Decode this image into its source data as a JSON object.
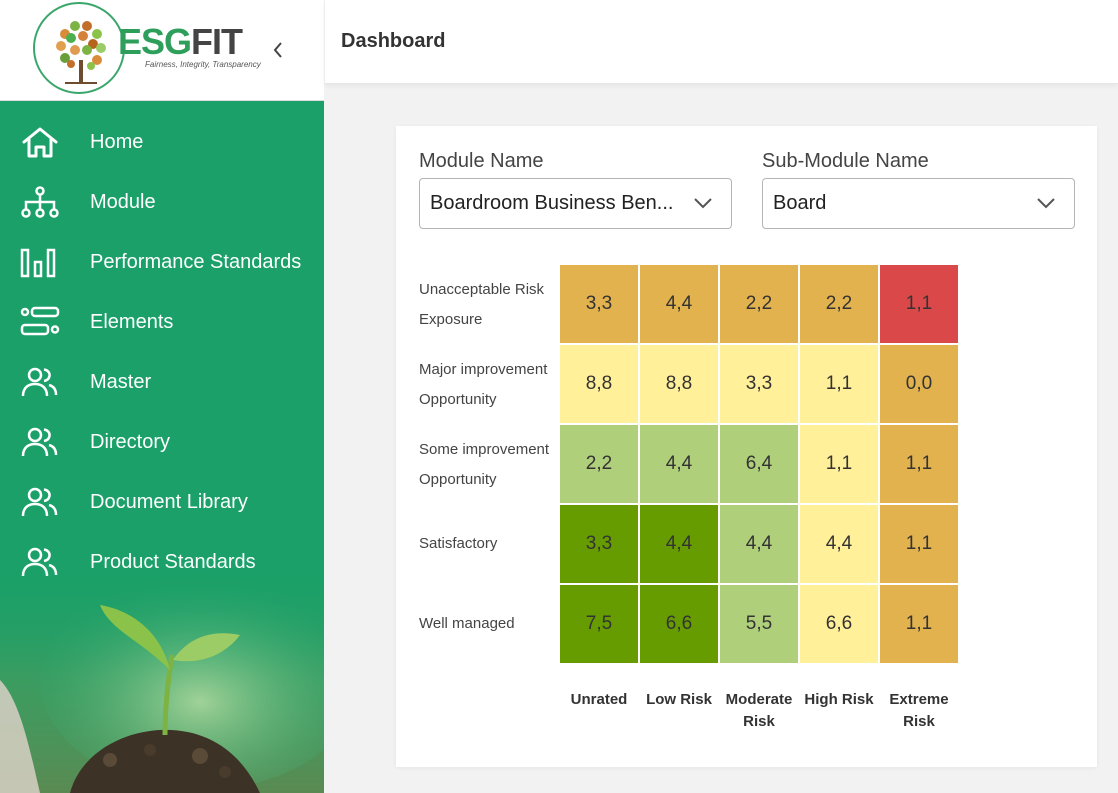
{
  "brand": {
    "name_part1": "ESG",
    "name_part2": "FIT",
    "tagline": "Fairness, Integrity, Transparency"
  },
  "header": {
    "title": "Dashboard"
  },
  "sidebar": {
    "items": [
      {
        "label": "Home",
        "icon": "home-icon"
      },
      {
        "label": "Module",
        "icon": "hierarchy-icon"
      },
      {
        "label": "Performance Standards",
        "icon": "bar-chart-icon"
      },
      {
        "label": "Elements",
        "icon": "elements-icon"
      },
      {
        "label": "Master",
        "icon": "users-icon"
      },
      {
        "label": "Directory",
        "icon": "users-icon"
      },
      {
        "label": "Document Library",
        "icon": "users-icon"
      },
      {
        "label": "Product Standards",
        "icon": "users-icon"
      }
    ]
  },
  "filters": {
    "module_label": "Module Name",
    "module_value": "Boardroom Business Ben...",
    "submodule_label": "Sub-Module Name",
    "submodule_value": "Board"
  },
  "colors": {
    "sidebar": "#1aa068",
    "dark_green": "#669c00",
    "light_green": "#b0cf7b",
    "yellow": "#fff099",
    "orange": "#e2b24f",
    "red": "#db484a"
  },
  "heatmap": {
    "rows": [
      {
        "label_line1": "Unacceptable Risk",
        "label_line2": "Exposure",
        "cells": [
          {
            "v": "3,3",
            "c": "orange"
          },
          {
            "v": "4,4",
            "c": "orange"
          },
          {
            "v": "2,2",
            "c": "orange"
          },
          {
            "v": "2,2",
            "c": "orange"
          },
          {
            "v": "1,1",
            "c": "red"
          }
        ]
      },
      {
        "label_line1": "Major improvement",
        "label_line2": "Opportunity",
        "cells": [
          {
            "v": "8,8",
            "c": "yellow"
          },
          {
            "v": "8,8",
            "c": "yellow"
          },
          {
            "v": "3,3",
            "c": "yellow"
          },
          {
            "v": "1,1",
            "c": "yellow"
          },
          {
            "v": "0,0",
            "c": "orange"
          }
        ]
      },
      {
        "label_line1": "Some improvement",
        "label_line2": "Opportunity",
        "cells": [
          {
            "v": "2,2",
            "c": "light_green"
          },
          {
            "v": "4,4",
            "c": "light_green"
          },
          {
            "v": "6,4",
            "c": "light_green"
          },
          {
            "v": "1,1",
            "c": "yellow"
          },
          {
            "v": "1,1",
            "c": "orange"
          }
        ]
      },
      {
        "label_line1": "Satisfactory",
        "label_line2": "",
        "cells": [
          {
            "v": "3,3",
            "c": "dark_green"
          },
          {
            "v": "4,4",
            "c": "dark_green"
          },
          {
            "v": "4,4",
            "c": "light_green"
          },
          {
            "v": "4,4",
            "c": "yellow"
          },
          {
            "v": "1,1",
            "c": "orange"
          }
        ]
      },
      {
        "label_line1": "Well managed",
        "label_line2": "",
        "cells": [
          {
            "v": "7,5",
            "c": "dark_green"
          },
          {
            "v": "6,6",
            "c": "dark_green"
          },
          {
            "v": "5,5",
            "c": "light_green"
          },
          {
            "v": "6,6",
            "c": "yellow"
          },
          {
            "v": "1,1",
            "c": "orange"
          }
        ]
      }
    ],
    "columns": [
      {
        "line1": "Unrated",
        "line2": ""
      },
      {
        "line1": "Low Risk",
        "line2": ""
      },
      {
        "line1": "Moderate",
        "line2": "Risk"
      },
      {
        "line1": "High Risk",
        "line2": ""
      },
      {
        "line1": "Extreme",
        "line2": "Risk"
      }
    ]
  }
}
